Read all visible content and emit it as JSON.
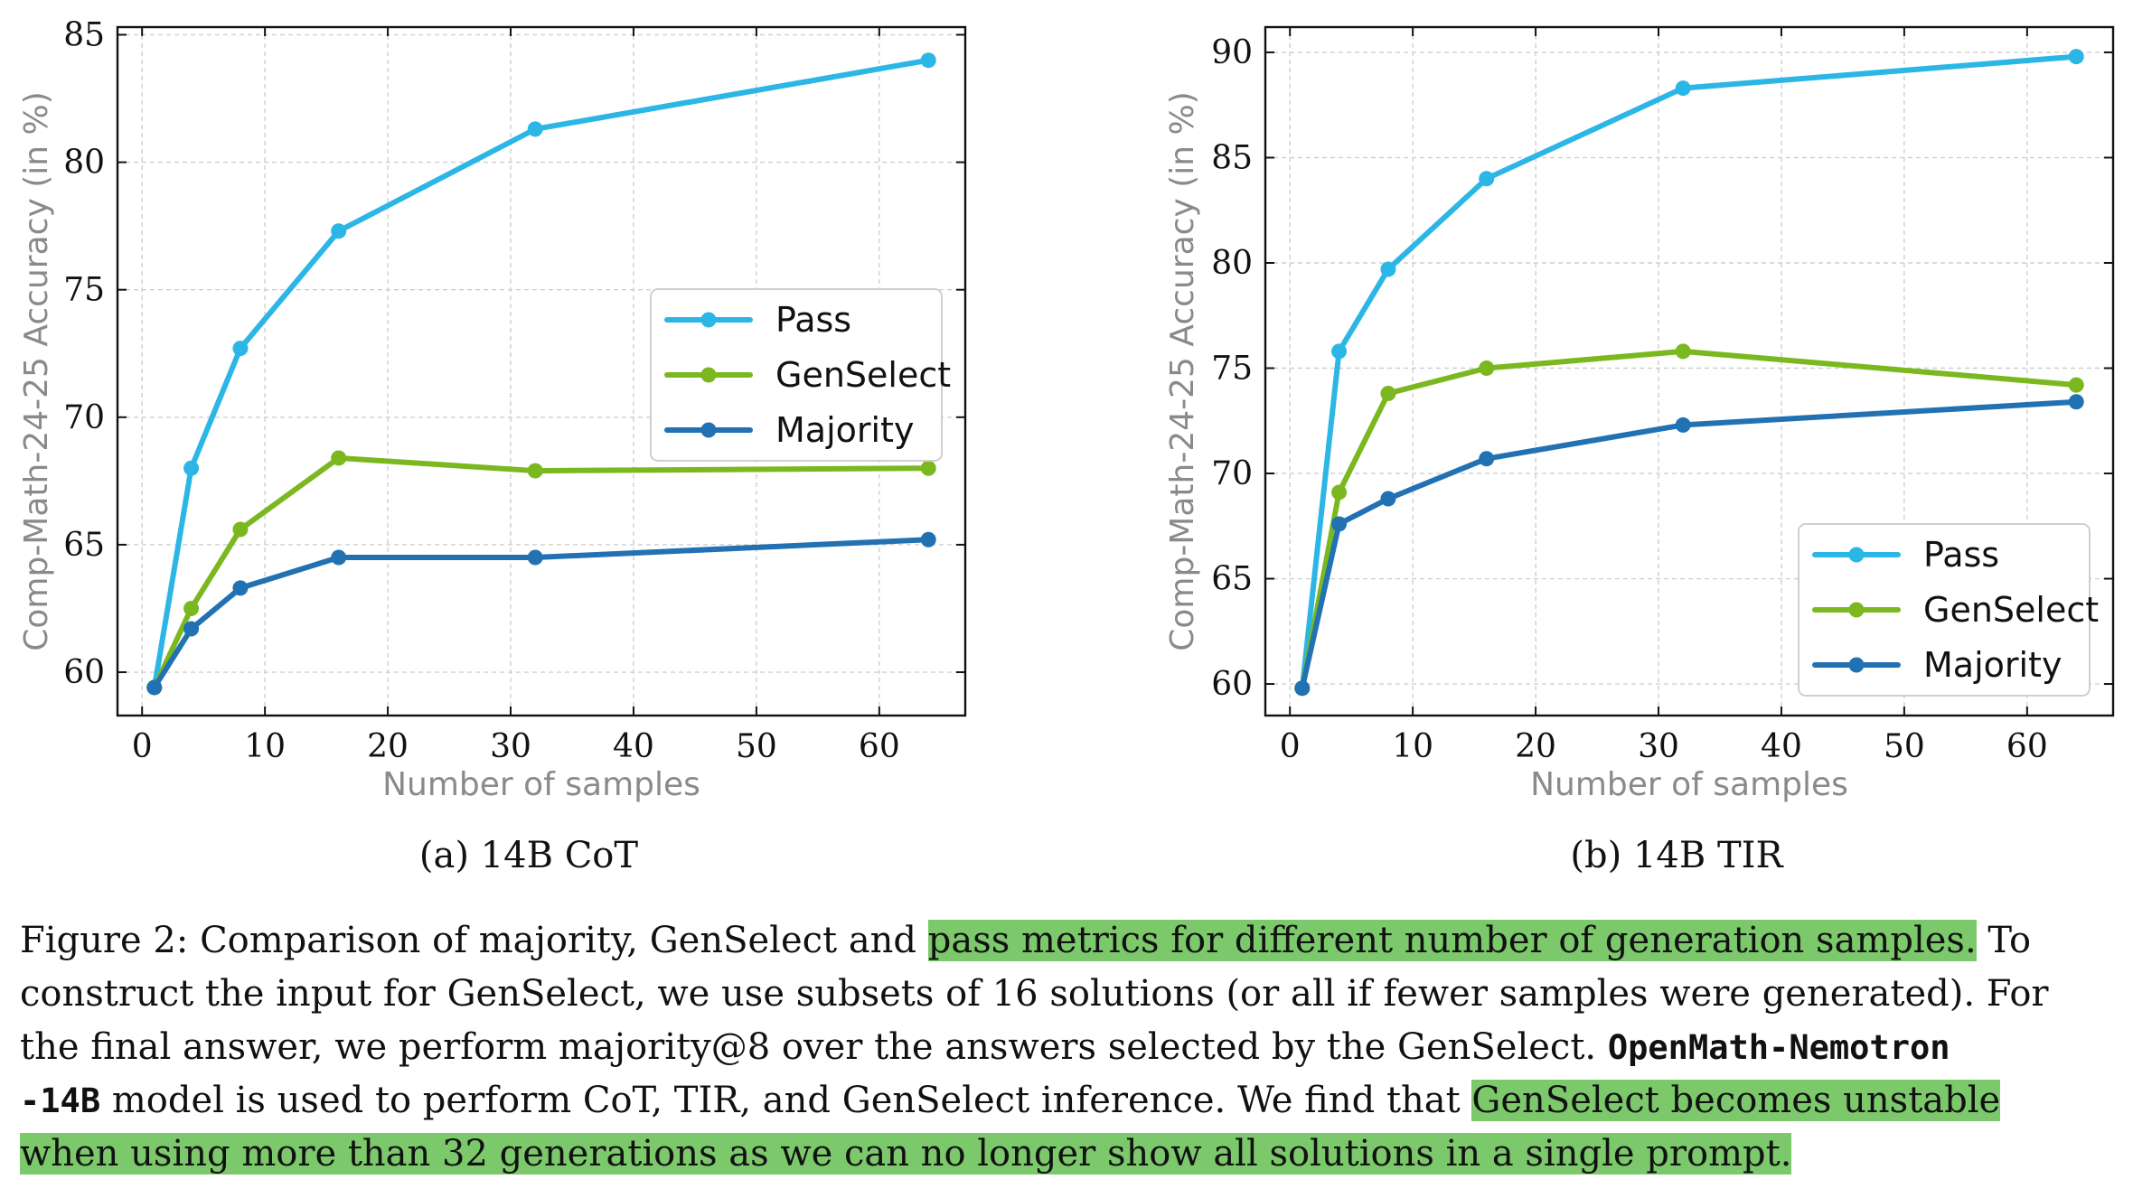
{
  "chart_data": [
    {
      "type": "line",
      "xlabel": "Number of samples",
      "ylabel": "Comp-Math-24-25 Accuracy (in %)",
      "xlim": [
        -2,
        67
      ],
      "ylim": [
        58.3,
        85.3
      ],
      "xticks": [
        0,
        10,
        20,
        30,
        40,
        50,
        60
      ],
      "yticks": [
        60,
        65,
        70,
        75,
        80,
        85
      ],
      "grid": true,
      "legend_position": "center-right",
      "x": [
        1,
        4,
        8,
        16,
        32,
        64
      ],
      "series": [
        {
          "name": "Pass",
          "color": "#2bb6e6",
          "values": [
            59.4,
            68.0,
            72.7,
            77.3,
            81.3,
            84.0
          ]
        },
        {
          "name": "GenSelect",
          "color": "#7bb81f",
          "values": [
            59.4,
            62.5,
            65.6,
            68.4,
            67.9,
            68.0
          ]
        },
        {
          "name": "Majority",
          "color": "#2271b3",
          "values": [
            59.4,
            61.7,
            63.3,
            64.5,
            64.5,
            65.2
          ]
        }
      ],
      "subcaption": "(a) 14B CoT"
    },
    {
      "type": "line",
      "xlabel": "Number of samples",
      "ylabel": "Comp-Math-24-25 Accuracy (in %)",
      "xlim": [
        -2,
        67
      ],
      "ylim": [
        58.5,
        91.2
      ],
      "xticks": [
        0,
        10,
        20,
        30,
        40,
        50,
        60
      ],
      "yticks": [
        60,
        65,
        70,
        75,
        80,
        85,
        90
      ],
      "grid": true,
      "legend_position": "bottom-right",
      "x": [
        1,
        4,
        8,
        16,
        32,
        64
      ],
      "series": [
        {
          "name": "Pass",
          "color": "#2bb6e6",
          "values": [
            59.8,
            75.8,
            79.7,
            84.0,
            88.3,
            89.8
          ]
        },
        {
          "name": "GenSelect",
          "color": "#7bb81f",
          "values": [
            59.8,
            69.1,
            73.8,
            75.0,
            75.8,
            74.2
          ]
        },
        {
          "name": "Majority",
          "color": "#2271b3",
          "values": [
            59.8,
            67.6,
            68.8,
            70.7,
            72.3,
            73.4
          ]
        }
      ],
      "subcaption": "(b) 14B TIR"
    }
  ],
  "caption": {
    "l1a": "Figure 2: Comparison of majority, GenSelect and ",
    "l1b": "pass metrics for different number of generation samples.",
    "l1c": " To",
    "l2": "construct the input for GenSelect, we use subsets of 16 solutions (or all if fewer samples were generated). For",
    "l3a": "the final answer, we perform majority@8 over the answers selected by the GenSelect. ",
    "l3b": "OpenMath-Nemotron",
    "l4a": "-14B",
    "l4b": " model is used to perform CoT, TIR, and GenSelect inference. We find that ",
    "l4c": "GenSelect becomes unstable",
    "l5": "when using more than 32 generations as we can no longer show all solutions in a single prompt."
  }
}
